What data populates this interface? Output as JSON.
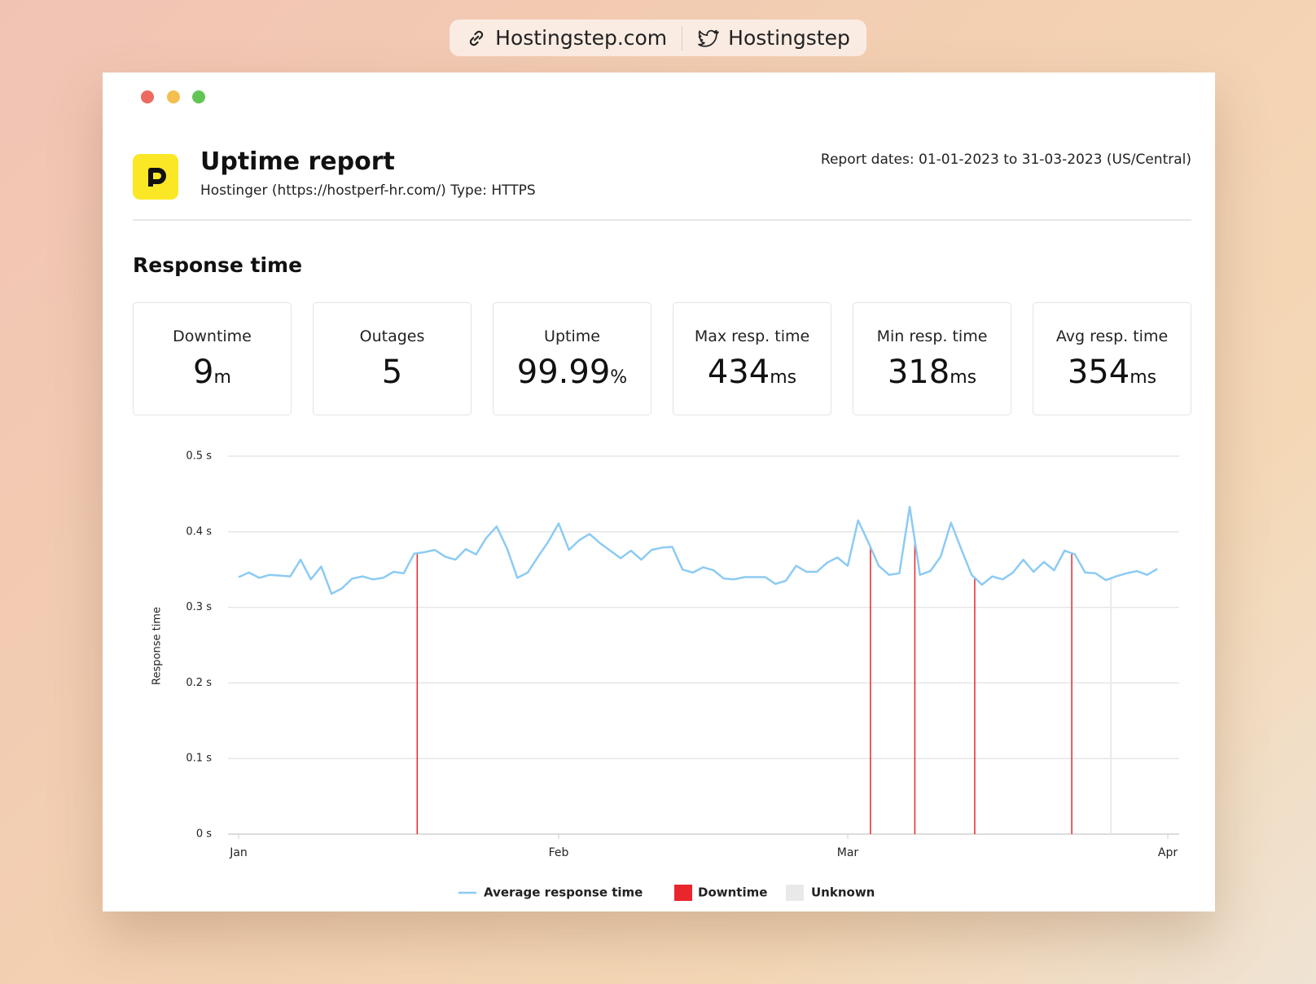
{
  "top_bar": {
    "site": "Hostingstep.com",
    "twitter": "Hostingstep"
  },
  "header": {
    "title": "Uptime report",
    "subtitle": "Hostinger (https://hostperf-hr.com/) Type: HTTPS",
    "report_dates": "Report dates: 01-01-2023 to 31-03-2023 (US/Central)"
  },
  "section_title": "Response time",
  "stats": [
    {
      "label": "Downtime",
      "value": 9,
      "unit": "m"
    },
    {
      "label": "Outages",
      "value": 5,
      "unit": ""
    },
    {
      "label": "Uptime",
      "value": 99.99,
      "unit": "%"
    },
    {
      "label": "Max resp. time",
      "value": 434,
      "unit": "ms"
    },
    {
      "label": "Min resp. time",
      "value": 318,
      "unit": "ms"
    },
    {
      "label": "Avg resp. time",
      "value": 354,
      "unit": "ms"
    }
  ],
  "chart_data": {
    "type": "line",
    "ylabel": "Response time",
    "categories": [
      "Jan",
      null,
      null,
      null,
      null,
      null,
      null,
      null,
      null,
      null,
      null,
      null,
      null,
      null,
      null,
      null,
      null,
      null,
      null,
      null,
      null,
      null,
      null,
      null,
      null,
      null,
      null,
      null,
      null,
      null,
      null,
      "Feb",
      null,
      null,
      null,
      null,
      null,
      null,
      null,
      null,
      null,
      null,
      null,
      null,
      null,
      null,
      null,
      null,
      null,
      null,
      null,
      null,
      null,
      null,
      null,
      null,
      null,
      null,
      null,
      "Mar",
      null,
      null,
      null,
      null,
      null,
      null,
      null,
      null,
      null,
      null,
      null,
      null,
      null,
      null,
      null,
      null,
      null,
      null,
      null,
      null,
      null,
      null,
      null,
      null,
      null,
      null,
      null,
      null,
      null,
      null,
      "Apr"
    ],
    "series": [
      {
        "name": "Average response time",
        "color": "#8ccbf3",
        "values": [
          0.34,
          0.346,
          0.339,
          0.343,
          0.342,
          0.341,
          0.363,
          0.337,
          0.354,
          0.318,
          0.325,
          0.338,
          0.341,
          0.337,
          0.339,
          0.347,
          0.345,
          0.371,
          0.373,
          0.376,
          0.367,
          0.363,
          0.377,
          0.37,
          0.392,
          0.407,
          0.378,
          0.339,
          0.346,
          0.367,
          0.387,
          0.411,
          0.376,
          0.389,
          0.397,
          0.385,
          0.375,
          0.365,
          0.375,
          0.363,
          0.376,
          0.379,
          0.38,
          0.35,
          0.346,
          0.353,
          0.349,
          0.338,
          0.337,
          0.34,
          0.34,
          0.34,
          0.331,
          0.335,
          0.355,
          0.347,
          0.347,
          0.359,
          0.366,
          0.355,
          0.415,
          0.386,
          0.355,
          0.343,
          0.345,
          0.433,
          0.343,
          0.348,
          0.367,
          0.412,
          0.377,
          0.343,
          0.33,
          0.341,
          0.337,
          0.346,
          0.363,
          0.347,
          0.36,
          0.349,
          0.375,
          0.37,
          0.346,
          0.345,
          0.336,
          0.341,
          0.345,
          0.348,
          0.343,
          0.351,
          null
        ]
      }
    ],
    "downtime": {
      "name": "Downtime",
      "color": "#e8262b",
      "x": [
        17.3,
        61.2,
        65.5,
        71.3,
        80.7
      ]
    },
    "unknown": {
      "name": "Unknown",
      "color": "#e9e9e9",
      "x": [
        84.5
      ]
    },
    "ylim": [
      0,
      0.5
    ],
    "yticks": [
      {
        "value": 0,
        "label": "0 s"
      },
      {
        "value": 0.1,
        "label": "0.1 s"
      },
      {
        "value": 0.2,
        "label": "0.2 s"
      },
      {
        "value": 0.3,
        "label": "0.3 s"
      },
      {
        "value": 0.4,
        "label": "0.4 s"
      },
      {
        "value": 0.5,
        "label": "0.5 s"
      }
    ],
    "grid": true
  }
}
